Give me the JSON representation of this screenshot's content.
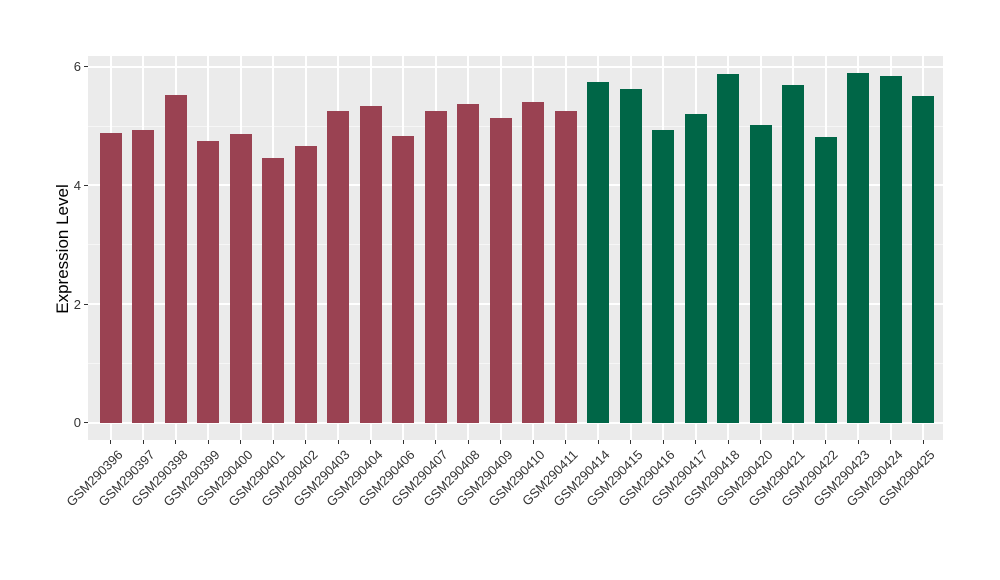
{
  "chart_data": {
    "type": "bar",
    "title": "",
    "xlabel": "",
    "ylabel": "Expression Level",
    "categories": [
      "GSM290396",
      "GSM290397",
      "GSM290398",
      "GSM290399",
      "GSM290400",
      "GSM290401",
      "GSM290402",
      "GSM290403",
      "GSM290404",
      "GSM290406",
      "GSM290407",
      "GSM290408",
      "GSM290409",
      "GSM290410",
      "GSM290411",
      "GSM290414",
      "GSM290415",
      "GSM290416",
      "GSM290417",
      "GSM290418",
      "GSM290420",
      "GSM290421",
      "GSM290422",
      "GSM290423",
      "GSM290424",
      "GSM290425"
    ],
    "values": [
      4.88,
      4.94,
      5.53,
      4.75,
      4.87,
      4.46,
      4.66,
      5.25,
      5.33,
      4.83,
      5.26,
      5.37,
      5.14,
      5.4,
      5.25,
      5.75,
      5.62,
      4.94,
      5.21,
      5.88,
      5.02,
      5.69,
      4.81,
      5.89,
      5.84,
      5.5
    ],
    "fill_groups": [
      0,
      0,
      0,
      0,
      0,
      0,
      0,
      0,
      0,
      0,
      0,
      0,
      0,
      0,
      0,
      1,
      1,
      1,
      1,
      1,
      1,
      1,
      1,
      1,
      1,
      1
    ],
    "group_colors": [
      "#9A4252",
      "#006647"
    ],
    "y_major_ticks": [
      0,
      2,
      4,
      6
    ],
    "y_minor_ticks": [
      1,
      3,
      5
    ],
    "ylim": [
      -0.29,
      6.19
    ],
    "grid": "on",
    "legend": "none",
    "panel_background": "#EBEBEB",
    "gridline_color": "#FFFFFF"
  }
}
